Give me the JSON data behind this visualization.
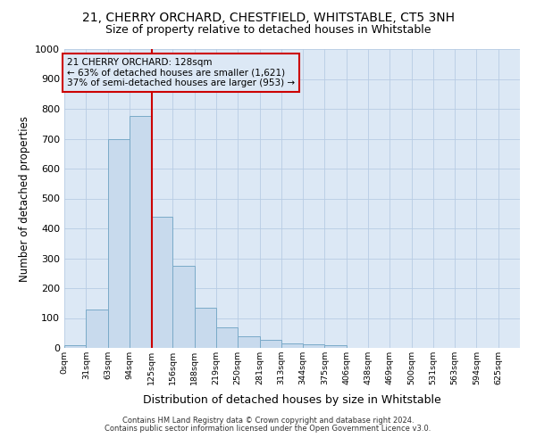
{
  "title1": "21, CHERRY ORCHARD, CHESTFIELD, WHITSTABLE, CT5 3NH",
  "title2": "Size of property relative to detached houses in Whitstable",
  "xlabel": "Distribution of detached houses by size in Whitstable",
  "ylabel": "Number of detached properties",
  "bin_labels": [
    "0sqm",
    "31sqm",
    "63sqm",
    "94sqm",
    "125sqm",
    "156sqm",
    "188sqm",
    "219sqm",
    "250sqm",
    "281sqm",
    "313sqm",
    "344sqm",
    "375sqm",
    "406sqm",
    "438sqm",
    "469sqm",
    "500sqm",
    "531sqm",
    "563sqm",
    "594sqm",
    "625sqm"
  ],
  "bar_heights": [
    8,
    127,
    700,
    775,
    440,
    275,
    133,
    68,
    40,
    28,
    15,
    12,
    8,
    0,
    0,
    0,
    0,
    0,
    0,
    0,
    0
  ],
  "bin_width": 31,
  "vline_x": 125,
  "bar_color": "#c8daed",
  "bar_edgecolor": "#7aaac8",
  "vline_color": "#cc0000",
  "annotation_text": "21 CHERRY ORCHARD: 128sqm\n← 63% of detached houses are smaller (1,621)\n37% of semi-detached houses are larger (953) →",
  "annotation_box_color": "#cc0000",
  "ylim": [
    0,
    1000
  ],
  "yticks": [
    0,
    100,
    200,
    300,
    400,
    500,
    600,
    700,
    800,
    900,
    1000
  ],
  "footer1": "Contains HM Land Registry data © Crown copyright and database right 2024.",
  "footer2": "Contains public sector information licensed under the Open Government Licence v3.0.",
  "fig_facecolor": "#ffffff",
  "ax_facecolor": "#dce8f5",
  "grid_color": "#b8cce4"
}
